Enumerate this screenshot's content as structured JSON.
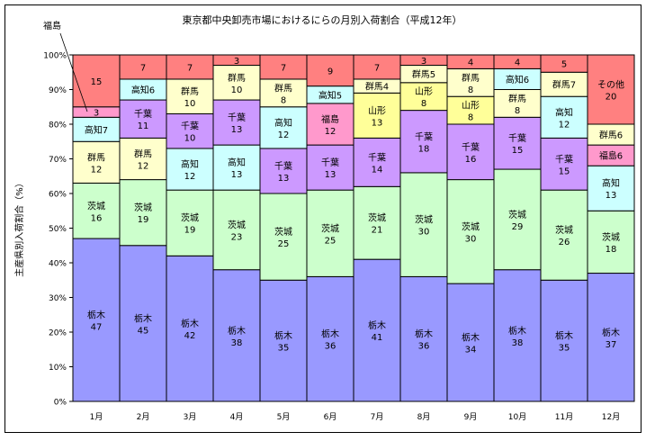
{
  "chart_data": {
    "type": "bar",
    "stacked": true,
    "title": "東京都中央卸売市場におけるにらの月別入荷割合（平成12年）",
    "ylabel": "主産県別入荷割合（%）",
    "xlabel": "",
    "ylim": [
      0,
      100
    ],
    "yticks": [
      "0%",
      "10%",
      "20%",
      "30%",
      "40%",
      "50%",
      "60%",
      "70%",
      "80%",
      "90%",
      "100%"
    ],
    "grid": false,
    "legend": "none",
    "categories": [
      "1月",
      "2月",
      "3月",
      "4月",
      "5月",
      "6月",
      "7月",
      "8月",
      "9月",
      "10月",
      "11月",
      "12月"
    ],
    "colors": {
      "栃木": "#9999ff",
      "茨城": "#ccffcc",
      "群馬": "#ffffcc",
      "高知": "#ccffff",
      "千葉": "#cc99ff",
      "福島": "#ff99cc",
      "山形": "#ffff99",
      "その他": "#ff8080"
    },
    "callout": "福島",
    "bars": [
      [
        {
          "name": "栃木",
          "value": 47,
          "style": "two"
        },
        {
          "name": "茨城",
          "value": 16,
          "style": "two"
        },
        {
          "name": "群馬",
          "value": 12,
          "style": "two"
        },
        {
          "name": "高知",
          "value": 7,
          "style": "inline"
        },
        {
          "name": "福島",
          "value": 3,
          "style": "value"
        },
        {
          "name": "その他",
          "value": 15,
          "style": "value"
        }
      ],
      [
        {
          "name": "栃木",
          "value": 45,
          "style": "two"
        },
        {
          "name": "茨城",
          "value": 19,
          "style": "two"
        },
        {
          "name": "群馬",
          "value": 12,
          "style": "two"
        },
        {
          "name": "千葉",
          "value": 11,
          "style": "two"
        },
        {
          "name": "高知",
          "value": 6,
          "style": "inline"
        },
        {
          "name": "その他",
          "value": 7,
          "style": "value"
        }
      ],
      [
        {
          "name": "栃木",
          "value": 42,
          "style": "two"
        },
        {
          "name": "茨城",
          "value": 19,
          "style": "two"
        },
        {
          "name": "高知",
          "value": 12,
          "style": "two"
        },
        {
          "name": "千葉",
          "value": 10,
          "style": "two"
        },
        {
          "name": "群馬",
          "value": 10,
          "style": "two"
        },
        {
          "name": "その他",
          "value": 7,
          "style": "value"
        }
      ],
      [
        {
          "name": "栃木",
          "value": 38,
          "style": "two"
        },
        {
          "name": "茨城",
          "value": 23,
          "style": "two"
        },
        {
          "name": "高知",
          "value": 13,
          "style": "two"
        },
        {
          "name": "千葉",
          "value": 13,
          "style": "two"
        },
        {
          "name": "群馬",
          "value": 10,
          "style": "two"
        },
        {
          "name": "その他",
          "value": 3,
          "style": "value"
        }
      ],
      [
        {
          "name": "栃木",
          "value": 35,
          "style": "two"
        },
        {
          "name": "茨城",
          "value": 25,
          "style": "two"
        },
        {
          "name": "千葉",
          "value": 13,
          "style": "two"
        },
        {
          "name": "高知",
          "value": 12,
          "style": "two"
        },
        {
          "name": "群馬",
          "value": 8,
          "style": "two"
        },
        {
          "name": "その他",
          "value": 7,
          "style": "value"
        }
      ],
      [
        {
          "name": "栃木",
          "value": 36,
          "style": "two"
        },
        {
          "name": "茨城",
          "value": 25,
          "style": "two"
        },
        {
          "name": "千葉",
          "value": 13,
          "style": "two"
        },
        {
          "name": "福島",
          "value": 12,
          "style": "two"
        },
        {
          "name": "高知",
          "value": 5,
          "style": "inline"
        },
        {
          "name": "その他",
          "value": 9,
          "style": "value"
        }
      ],
      [
        {
          "name": "栃木",
          "value": 41,
          "style": "two"
        },
        {
          "name": "茨城",
          "value": 21,
          "style": "two"
        },
        {
          "name": "千葉",
          "value": 14,
          "style": "two"
        },
        {
          "name": "山形",
          "value": 13,
          "style": "two"
        },
        {
          "name": "群馬",
          "value": 4,
          "style": "inline"
        },
        {
          "name": "その他",
          "value": 7,
          "style": "value"
        }
      ],
      [
        {
          "name": "栃木",
          "value": 36,
          "style": "two"
        },
        {
          "name": "茨城",
          "value": 30,
          "style": "two"
        },
        {
          "name": "千葉",
          "value": 18,
          "style": "two"
        },
        {
          "name": "山形",
          "value": 8,
          "style": "two"
        },
        {
          "name": "群馬",
          "value": 5,
          "style": "inline"
        },
        {
          "name": "その他",
          "value": 3,
          "style": "value"
        }
      ],
      [
        {
          "name": "栃木",
          "value": 34,
          "style": "two"
        },
        {
          "name": "茨城",
          "value": 30,
          "style": "two"
        },
        {
          "name": "千葉",
          "value": 16,
          "style": "two"
        },
        {
          "name": "山形",
          "value": 8,
          "style": "two"
        },
        {
          "name": "群馬",
          "value": 8,
          "style": "two"
        },
        {
          "name": "その他",
          "value": 4,
          "style": "value"
        }
      ],
      [
        {
          "name": "栃木",
          "value": 38,
          "style": "two"
        },
        {
          "name": "茨城",
          "value": 29,
          "style": "two"
        },
        {
          "name": "千葉",
          "value": 15,
          "style": "two"
        },
        {
          "name": "群馬",
          "value": 8,
          "style": "two"
        },
        {
          "name": "高知",
          "value": 6,
          "style": "inline"
        },
        {
          "name": "その他",
          "value": 4,
          "style": "value"
        }
      ],
      [
        {
          "name": "栃木",
          "value": 35,
          "style": "two"
        },
        {
          "name": "茨城",
          "value": 26,
          "style": "two"
        },
        {
          "name": "千葉",
          "value": 15,
          "style": "two"
        },
        {
          "name": "高知",
          "value": 12,
          "style": "two"
        },
        {
          "name": "群馬",
          "value": 7,
          "style": "inline"
        },
        {
          "name": "その他",
          "value": 5,
          "style": "value"
        }
      ],
      [
        {
          "name": "栃木",
          "value": 37,
          "style": "two"
        },
        {
          "name": "茨城",
          "value": 18,
          "style": "two"
        },
        {
          "name": "高知",
          "value": 13,
          "style": "two"
        },
        {
          "name": "福島",
          "value": 6,
          "style": "inline"
        },
        {
          "name": "群馬",
          "value": 6,
          "style": "inline"
        },
        {
          "name": "その他",
          "value": 20,
          "style": "two"
        }
      ]
    ]
  }
}
